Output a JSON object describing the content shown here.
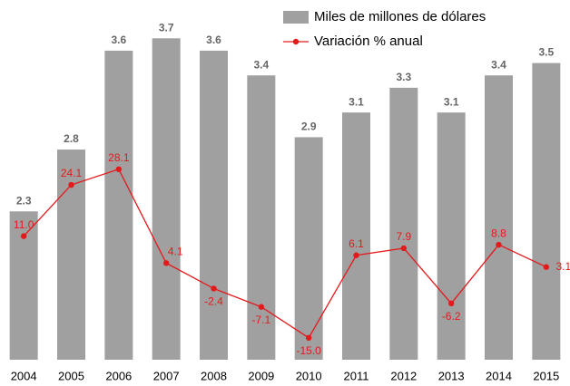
{
  "chart_data": {
    "type": "bar-line",
    "categories": [
      "2004",
      "2005",
      "2006",
      "2007",
      "2008",
      "2009",
      "2010",
      "2011",
      "2012",
      "2013",
      "2014",
      "2015"
    ],
    "series": [
      {
        "name": "Miles de millones de dólares",
        "type": "bar",
        "color": "#a0a0a0",
        "values": [
          2.3,
          2.8,
          3.6,
          3.7,
          3.6,
          3.4,
          2.9,
          3.1,
          3.3,
          3.1,
          3.4,
          3.5
        ]
      },
      {
        "name": "Variación % anual",
        "type": "line",
        "axis": "y2",
        "color": "#e31a1c",
        "values": [
          11.0,
          24.1,
          28.1,
          4.1,
          -2.4,
          -7.1,
          -15.0,
          6.1,
          7.9,
          -6.2,
          8.8,
          3.1
        ],
        "value_labels": [
          "11.0",
          "24.1",
          "28.1",
          "4.1",
          "-2.4",
          "-7.1",
          "-15.0",
          "6.1",
          "7.9",
          "-6.2",
          "8.8",
          "3.1"
        ]
      }
    ],
    "ylim": [
      1.1,
      3.9
    ],
    "y2lim": [
      -20.6,
      67.9
    ],
    "legend": "top-right"
  }
}
